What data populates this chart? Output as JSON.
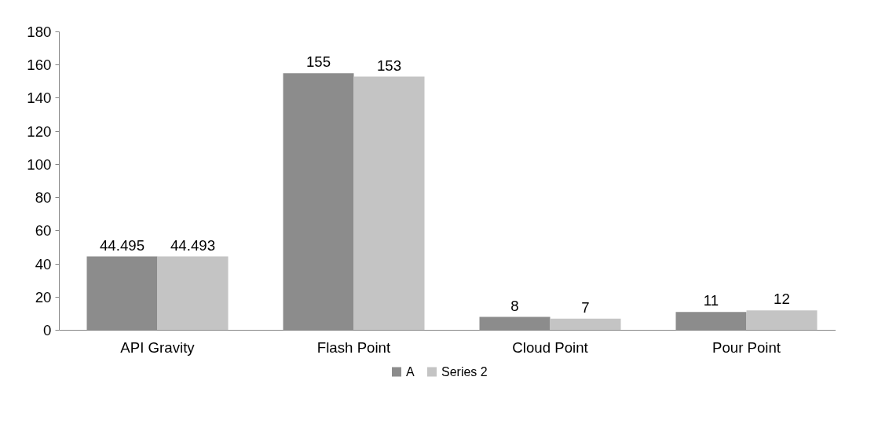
{
  "chart_data": {
    "type": "bar",
    "categories": [
      "API Gravity",
      "Flash Point",
      "Cloud Point",
      "Pour Point"
    ],
    "series": [
      {
        "name": "A",
        "color": "#8c8c8c",
        "values": [
          44.495,
          155,
          8,
          11
        ]
      },
      {
        "name": "Series 2",
        "color": "#c4c4c4",
        "values": [
          44.493,
          153,
          7,
          12
        ]
      }
    ],
    "ylim": [
      0,
      180
    ],
    "yticks": [
      0,
      20,
      40,
      60,
      80,
      100,
      120,
      140,
      160,
      180
    ],
    "grid": false,
    "legend": "bottom",
    "data_labels": true
  }
}
